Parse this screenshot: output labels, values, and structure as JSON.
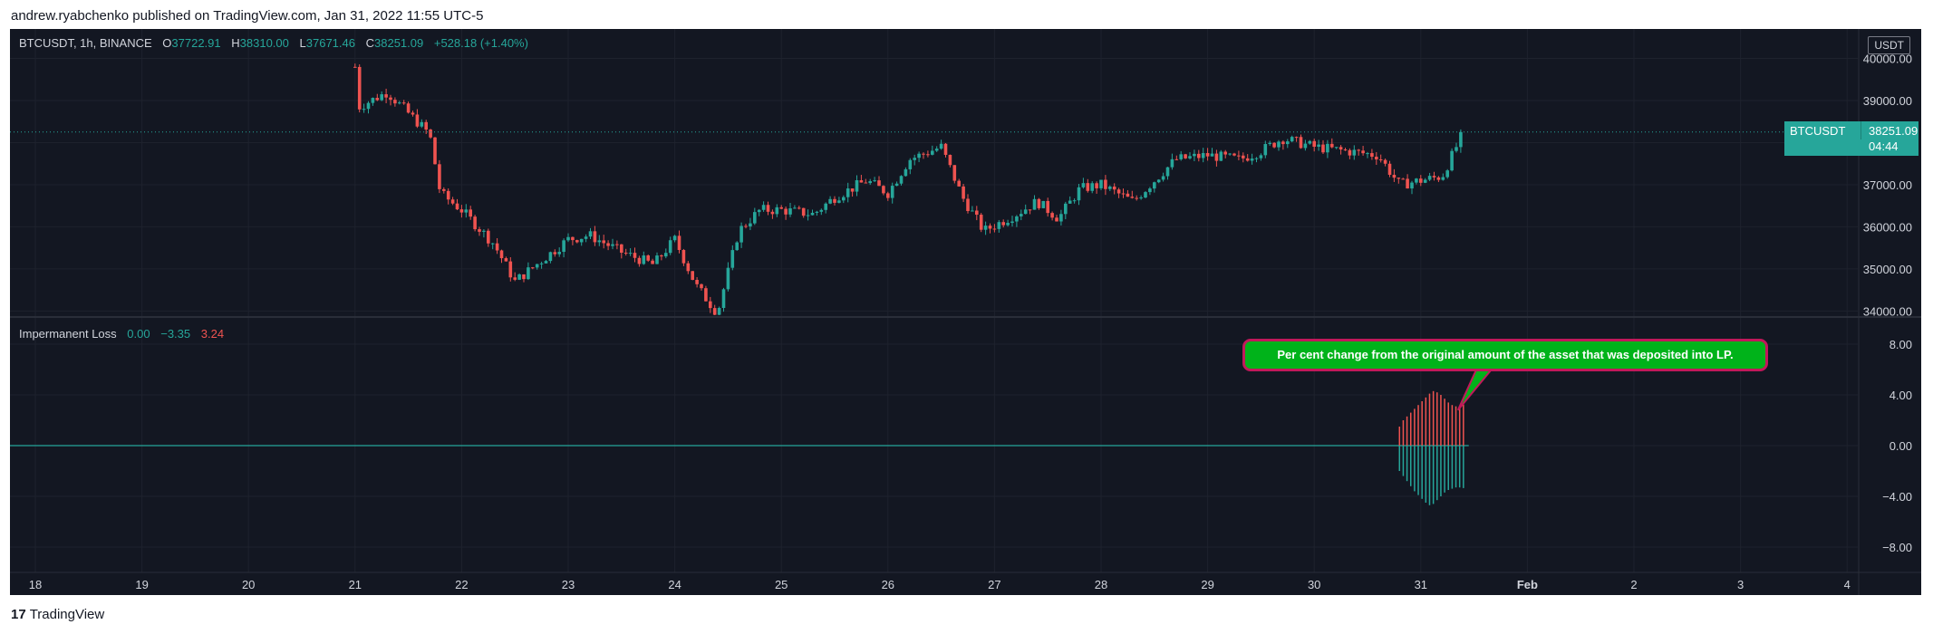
{
  "header": {
    "published_text": "andrew.ryabchenko published on TradingView.com, Jan 31, 2022 11:55 UTC-5"
  },
  "legend": {
    "symbol": "BTCUSDT, 1h, BINANCE",
    "open_label": "O",
    "open": "37722.91",
    "high_label": "H",
    "high": "38310.00",
    "low_label": "L",
    "low": "37671.46",
    "close_label": "C",
    "close": "38251.09",
    "change": "+528.18 (+1.40%)"
  },
  "indicator_legend": {
    "name": "Impermanent Loss",
    "v1": "0.00",
    "v2": "−3.35",
    "v3": "3.24"
  },
  "price_scale": {
    "unit": "USDT"
  },
  "last_price_badge": {
    "symbol": "BTCUSDT",
    "price": "38251.09",
    "countdown": "04:44"
  },
  "annotation": {
    "text": "Per cent change from the original amount of the asset that was deposited into LP."
  },
  "footer": {
    "logo_mark": "17",
    "logo_text": "TradingView"
  },
  "colors": {
    "background": "#131722",
    "grid": "#1e222d",
    "up": "#26a69a",
    "down": "#ef5350",
    "zero_line": "#26a69a",
    "annotation_fill": "#00b31a",
    "annotation_border": "#c2185b"
  },
  "chart_data": [
    {
      "type": "candlestick",
      "title": "BTCUSDT, 1h, BINANCE",
      "x_tick_labels": [
        "18",
        "19",
        "20",
        "21",
        "22",
        "23",
        "24",
        "25",
        "26",
        "27",
        "28",
        "29",
        "30",
        "31",
        "Feb",
        "2",
        "3",
        "4"
      ],
      "y_tick_labels": [
        "40000.00",
        "39000.00",
        "38000.00",
        "37000.00",
        "36000.00",
        "35000.00",
        "34000.00"
      ],
      "ylim": [
        33900,
        40700
      ],
      "grid": true,
      "last_price": 38251.09,
      "series": [
        {
          "name": "BTCUSDT",
          "x_start": "21",
          "x_end": "31",
          "close_path": [
            [
              "21",
              39800
            ],
            [
              "21",
              38800
            ],
            [
              "21.3",
              39200
            ],
            [
              "21.5",
              38700
            ],
            [
              "21.7",
              38200
            ],
            [
              "21.8",
              36800
            ],
            [
              "22",
              36400
            ],
            [
              "22.3",
              35600
            ],
            [
              "22.5",
              34700
            ],
            [
              "22.8",
              35300
            ],
            [
              "23",
              35700
            ],
            [
              "23.2",
              35800
            ],
            [
              "23.5",
              35400
            ],
            [
              "23.8",
              35100
            ],
            [
              "24",
              35700
            ],
            [
              "24.2",
              34600
            ],
            [
              "24.4",
              33950
            ],
            [
              "24.6",
              35900
            ],
            [
              "24.8",
              36400
            ],
            [
              "25",
              36400
            ],
            [
              "25.3",
              36300
            ],
            [
              "25.5",
              36700
            ],
            [
              "25.8",
              37100
            ],
            [
              "26",
              36800
            ],
            [
              "26.2",
              37600
            ],
            [
              "26.5",
              37900
            ],
            [
              "26.7",
              36700
            ],
            [
              "26.9",
              35900
            ],
            [
              "27.2",
              36300
            ],
            [
              "27.4",
              36600
            ],
            [
              "27.6",
              36200
            ],
            [
              "27.8",
              36900
            ],
            [
              "28",
              37000
            ],
            [
              "28.3",
              36600
            ],
            [
              "28.5",
              37100
            ],
            [
              "28.7",
              37600
            ],
            [
              "29",
              37700
            ],
            [
              "29.3",
              37600
            ],
            [
              "29.5",
              37800
            ],
            [
              "29.7",
              38100
            ],
            [
              "30",
              37900
            ],
            [
              "30.3",
              37800
            ],
            [
              "30.6",
              37700
            ],
            [
              "30.8",
              37000
            ],
            [
              "31",
              37100
            ],
            [
              "31.2",
              37200
            ],
            [
              "31.4",
              38251.09
            ]
          ]
        }
      ]
    },
    {
      "type": "bar",
      "title": "Impermanent Loss",
      "y_tick_labels": [
        "8.00",
        "4.00",
        "0.00",
        "−4.00",
        "−8.00"
      ],
      "ylim": [
        -10,
        10
      ],
      "grid": true,
      "x_start": "30.8",
      "x_end": "31.4",
      "series": [
        {
          "name": "positive",
          "values": [
            1.5,
            2.0,
            2.3,
            2.6,
            2.9,
            3.2,
            3.5,
            3.8,
            4.1,
            4.3,
            4.2,
            4.0,
            3.7,
            3.4,
            3.2,
            3.1,
            3.0,
            3.24
          ]
        },
        {
          "name": "negative",
          "values": [
            -2.0,
            -2.4,
            -2.8,
            -3.2,
            -3.6,
            -3.9,
            -4.2,
            -4.5,
            -4.7,
            -4.6,
            -4.3,
            -4.0,
            -3.7,
            -3.5,
            -3.4,
            -3.3,
            -3.3,
            -3.35
          ]
        }
      ],
      "zero_line": 0
    }
  ]
}
